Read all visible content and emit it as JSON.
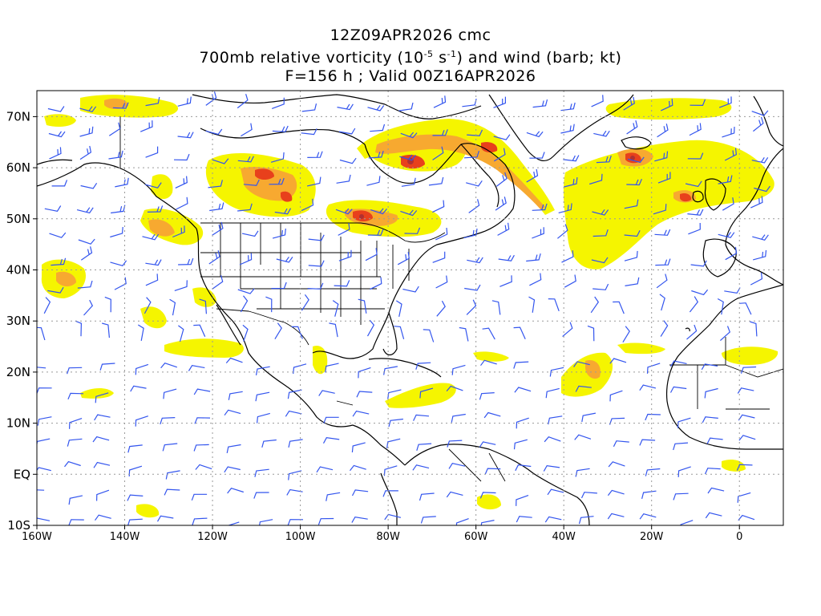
{
  "title": {
    "line1": "12Z09APR2026 cmc",
    "line2_prefix": "700mb relative vorticity (10",
    "line2_exp1": "-5",
    "line2_mid": " s",
    "line2_exp2": "-1",
    "line2_suffix": ") and wind (barb; kt)",
    "line3": "F=156 h ; Valid 00Z16APR2026"
  },
  "axes": {
    "lon_labels": [
      "160W",
      "140W",
      "120W",
      "100W",
      "80W",
      "60W",
      "40W",
      "20W",
      "0"
    ],
    "lon_values": [
      -160,
      -140,
      -120,
      -100,
      -80,
      -60,
      -40,
      -20,
      0
    ],
    "lat_labels": [
      "70N",
      "60N",
      "50N",
      "40N",
      "30N",
      "20N",
      "10N",
      "EQ",
      "10S"
    ],
    "lat_values": [
      70,
      60,
      50,
      40,
      30,
      20,
      10,
      0,
      -10
    ],
    "lon_range": [
      -160,
      10
    ],
    "lat_range": [
      -10,
      75
    ]
  },
  "colors": {
    "vort_low": "#f5f500",
    "vort_mid": "#f7a930",
    "vort_high": "#e8401c",
    "vort_max": "#b03030",
    "barb": "#3355ee",
    "coast": "#000000",
    "grid": "#9a9a9a"
  }
}
